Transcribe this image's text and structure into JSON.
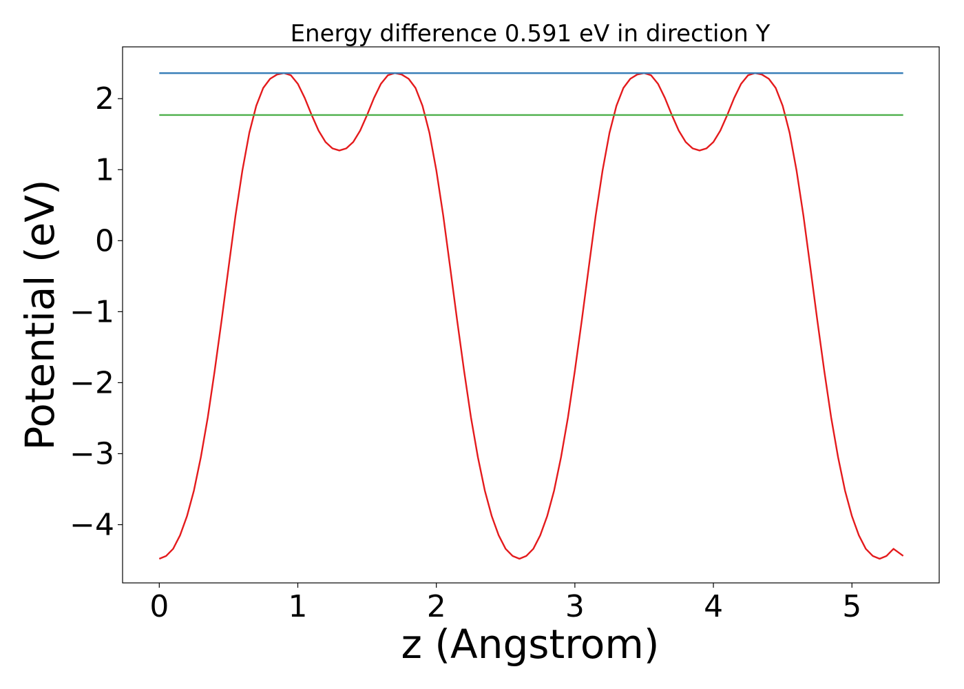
{
  "chart_data": {
    "type": "line",
    "title": "Energy difference 0.591 eV in direction Y",
    "xlabel": "z (Angstrom)",
    "ylabel": "Potential (eV)",
    "xlim": [
      -0.265,
      5.63
    ],
    "ylim": [
      -4.82,
      2.73
    ],
    "xticks": [
      0,
      1,
      2,
      3,
      4,
      5
    ],
    "xtick_labels": [
      "0",
      "1",
      "2",
      "3",
      "4",
      "5"
    ],
    "yticks": [
      -4,
      -3,
      -2,
      -1,
      0,
      1,
      2
    ],
    "ytick_labels": [
      "−4",
      "−3",
      "−2",
      "−1",
      "0",
      "1",
      "2"
    ],
    "grid": false,
    "legend": "none",
    "series": [
      {
        "color": "#e41a1c",
        "x": [
          0,
          0.05,
          0.1,
          0.15,
          0.2,
          0.25,
          0.3,
          0.35,
          0.4,
          0.45,
          0.5,
          0.55,
          0.6,
          0.65,
          0.7,
          0.75,
          0.8,
          0.85,
          0.9,
          0.95,
          1.0,
          1.05,
          1.1,
          1.15,
          1.2,
          1.25,
          1.3,
          1.35,
          1.4,
          1.45,
          1.5,
          1.55,
          1.6,
          1.65,
          1.7,
          1.75,
          1.8,
          1.85,
          1.9,
          1.95,
          2.0,
          2.05,
          2.1,
          2.15,
          2.2,
          2.25,
          2.3,
          2.35,
          2.4,
          2.45,
          2.5,
          2.55,
          2.6,
          2.65,
          2.7,
          2.75,
          2.8,
          2.85,
          2.9,
          2.95,
          3.0,
          3.05,
          3.1,
          3.15,
          3.2,
          3.25,
          3.3,
          3.35,
          3.4,
          3.45,
          3.5,
          3.55,
          3.6,
          3.65,
          3.7,
          3.75,
          3.8,
          3.85,
          3.9,
          3.95,
          4.0,
          4.05,
          4.1,
          4.15,
          4.2,
          4.25,
          4.3,
          4.35,
          4.4,
          4.45,
          4.5,
          4.55,
          4.6,
          4.65,
          4.7,
          4.75,
          4.8,
          4.85,
          4.9,
          4.95,
          5.0,
          5.05,
          5.1,
          5.15,
          5.2,
          5.25,
          5.3,
          5.37
        ],
        "y": [
          -4.48,
          -4.44,
          -4.34,
          -4.15,
          -3.88,
          -3.52,
          -3.05,
          -2.49,
          -1.83,
          -1.12,
          -0.38,
          0.35,
          0.99,
          1.52,
          1.9,
          2.15,
          2.28,
          2.34,
          2.36,
          2.33,
          2.21,
          2.01,
          1.77,
          1.55,
          1.39,
          1.3,
          1.27,
          1.3,
          1.39,
          1.55,
          1.77,
          2.01,
          2.21,
          2.33,
          2.36,
          2.34,
          2.28,
          2.15,
          1.9,
          1.52,
          0.99,
          0.35,
          -0.38,
          -1.12,
          -1.83,
          -2.49,
          -3.05,
          -3.52,
          -3.88,
          -4.15,
          -4.34,
          -4.44,
          -4.48,
          -4.44,
          -4.34,
          -4.15,
          -3.88,
          -3.52,
          -3.05,
          -2.49,
          -1.83,
          -1.12,
          -0.38,
          0.35,
          0.99,
          1.52,
          1.9,
          2.15,
          2.28,
          2.34,
          2.36,
          2.33,
          2.21,
          2.01,
          1.77,
          1.55,
          1.39,
          1.3,
          1.27,
          1.3,
          1.39,
          1.55,
          1.77,
          2.01,
          2.21,
          2.33,
          2.36,
          2.34,
          2.28,
          2.15,
          1.9,
          1.52,
          0.99,
          0.35,
          -0.38,
          -1.12,
          -1.83,
          -2.49,
          -3.05,
          -3.52,
          -3.88,
          -4.15,
          -4.34,
          -4.44,
          -4.48,
          -4.44,
          -4.34,
          -4.44
        ]
      },
      {
        "color": "#377eb8",
        "x": [
          0,
          5.37
        ],
        "y": [
          2.36,
          2.36
        ]
      },
      {
        "color": "#4daf4a",
        "x": [
          0,
          5.37
        ],
        "y": [
          1.77,
          1.77
        ]
      }
    ]
  }
}
